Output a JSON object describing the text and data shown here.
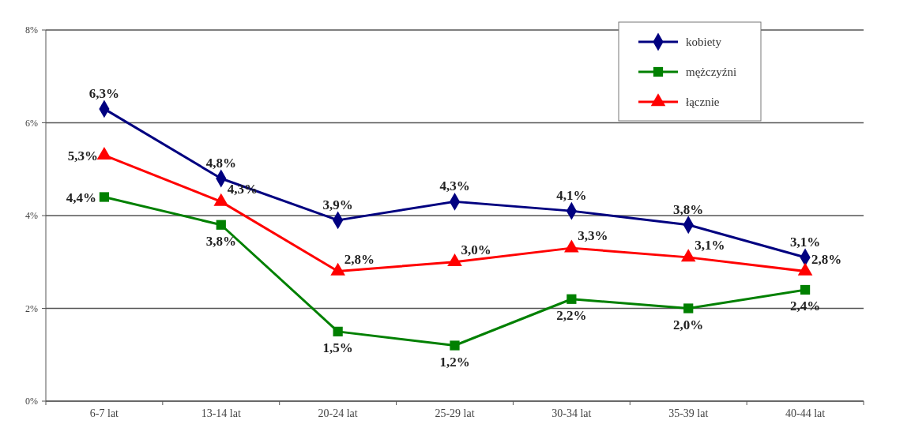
{
  "chart_data": {
    "type": "line",
    "categories": [
      "6-7 lat",
      "13-14 lat",
      "20-24 lat",
      "25-29 lat",
      "30-34 lat",
      "35-39 lat",
      "40-44 lat"
    ],
    "ylim": [
      0,
      8
    ],
    "yticks": [
      {
        "value": 0,
        "label": "0%"
      },
      {
        "value": 2,
        "label": "2%"
      },
      {
        "value": 4,
        "label": "4%"
      },
      {
        "value": 6,
        "label": "6%"
      },
      {
        "value": 8,
        "label": "8%"
      }
    ],
    "grid": "y",
    "legend": "top right",
    "series": [
      {
        "name": "kobiety",
        "color": "#000080",
        "marker": "diamond",
        "values": [
          6.3,
          4.8,
          3.9,
          4.3,
          4.1,
          3.8,
          3.1
        ],
        "value_labels": [
          "6,3%",
          "4,8%",
          "3,9%",
          "4,3%",
          "4,1%",
          "3,8%",
          "3,1%"
        ]
      },
      {
        "name": "mężczyźni",
        "color": "#008000",
        "marker": "square",
        "values": [
          4.4,
          3.8,
          1.5,
          1.2,
          2.2,
          2.0,
          2.4
        ],
        "value_labels": [
          "4,4%",
          "3,8%",
          "1,5%",
          "1,2%",
          "2,2%",
          "2,0%",
          "2,4%"
        ]
      },
      {
        "name": "łącznie",
        "color": "#ff0000",
        "marker": "triangle",
        "values": [
          5.3,
          4.3,
          2.8,
          3.0,
          3.3,
          3.1,
          2.8
        ],
        "value_labels": [
          "5,3%",
          "4,3%",
          "2,8%",
          "3,0%",
          "3,3%",
          "3,1%",
          "2,8%"
        ]
      }
    ]
  }
}
